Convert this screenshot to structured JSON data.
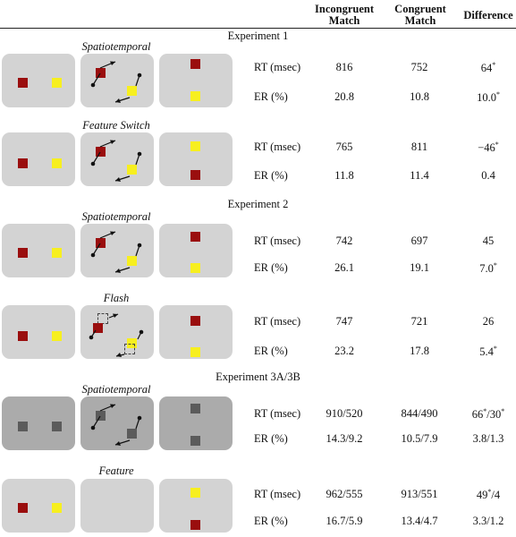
{
  "columns": {
    "incongruent": "Incongruent Match",
    "congruent": "Congruent Match",
    "difference": "Difference"
  },
  "experiments": [
    {
      "title": "Experiment 1",
      "blocks": [
        {
          "condition": "Spatiotemporal",
          "rt": {
            "label": "RT (msec)",
            "incongruent": "816",
            "congruent": "752",
            "difference": "64*"
          },
          "er": {
            "label": "ER (%)",
            "incongruent": "20.8",
            "congruent": "10.8",
            "difference": "10.0*"
          }
        },
        {
          "condition": "Feature Switch",
          "rt": {
            "label": "RT (msec)",
            "incongruent": "765",
            "congruent": "811",
            "difference": "−46*"
          },
          "er": {
            "label": "ER (%)",
            "incongruent": "11.8",
            "congruent": "11.4",
            "difference": "0.4"
          }
        }
      ]
    },
    {
      "title": "Experiment 2",
      "blocks": [
        {
          "condition": "Spatiotemporal",
          "rt": {
            "label": "RT (msec)",
            "incongruent": "742",
            "congruent": "697",
            "difference": "45"
          },
          "er": {
            "label": "ER (%)",
            "incongruent": "26.1",
            "congruent": "19.1",
            "difference": "7.0*"
          }
        },
        {
          "condition": "Flash",
          "rt": {
            "label": "RT (msec)",
            "incongruent": "747",
            "congruent": "721",
            "difference": "26"
          },
          "er": {
            "label": "ER (%)",
            "incongruent": "23.2",
            "congruent": "17.8",
            "difference": "5.4*"
          }
        }
      ]
    },
    {
      "title": "Experiment 3A/3B",
      "blocks": [
        {
          "condition": "Spatiotemporal",
          "rt": {
            "label": "RT (msec)",
            "incongruent": "910/520",
            "congruent": "844/490",
            "difference": "66*/30*"
          },
          "er": {
            "label": "ER (%)",
            "incongruent": "14.3/9.2",
            "congruent": "10.5/7.9",
            "difference": "3.8/1.3"
          }
        },
        {
          "condition": "Feature",
          "rt": {
            "label": "RT (msec)",
            "incongruent": "962/555",
            "congruent": "913/551",
            "difference": "49*/4"
          },
          "er": {
            "label": "ER (%)",
            "incongruent": "16.7/5.9",
            "congruent": "13.4/4.7",
            "difference": "3.3/1.2"
          }
        }
      ]
    }
  ],
  "stimulus_colors": {
    "red": "#9a0e0e",
    "yellow": "#f7ef1f",
    "gray": "#5b5b5b",
    "panel": "#d3d3d3",
    "panel_dark": "#ababab"
  }
}
